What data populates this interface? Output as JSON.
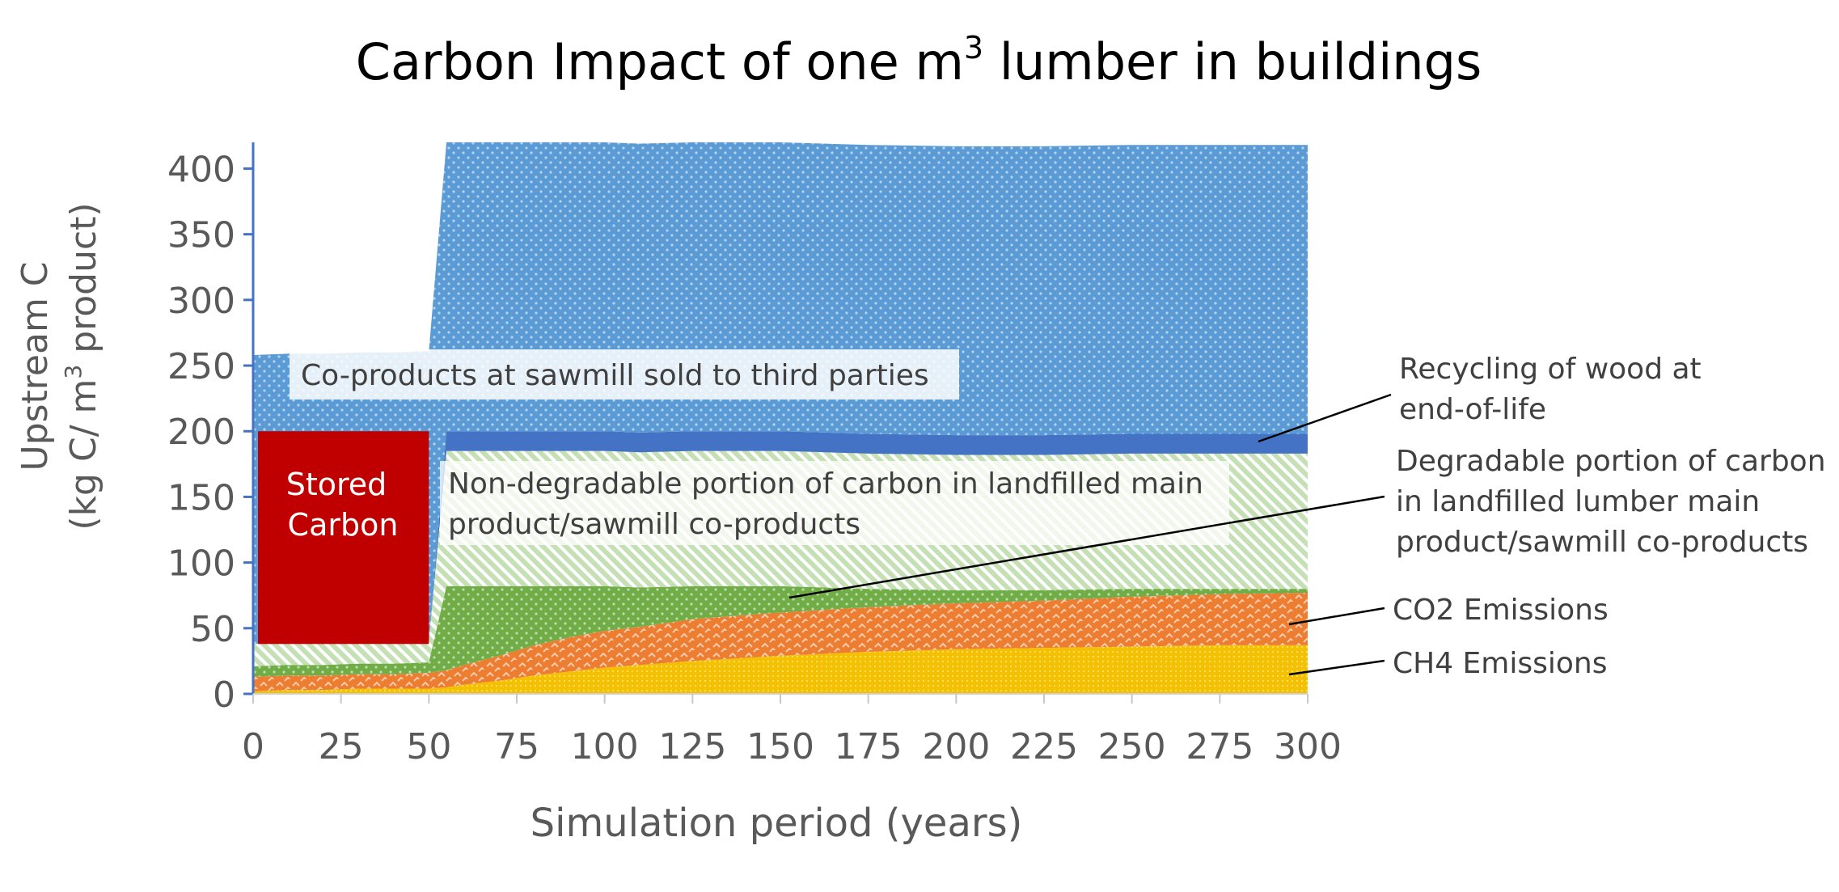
{
  "chart_data": {
    "type": "area",
    "title_main": "Carbon Impact of one m",
    "title_sup": "3",
    "title_rest": " lumber in buildings",
    "xlabel": "Simulation period (years)",
    "ylabel_line1": "Upstream C",
    "ylabel_line2_a": "(kg C/ m",
    "ylabel_line2_sup": "3",
    "ylabel_line2_b": " product)",
    "xlim": [
      0,
      300
    ],
    "ylim": [
      0,
      420
    ],
    "x_ticks": [
      "0",
      "25",
      "50",
      "75",
      "100",
      "125",
      "150",
      "175",
      "200",
      "225",
      "250",
      "275",
      "300"
    ],
    "y_ticks": [
      "0",
      "50",
      "100",
      "150",
      "200",
      "250",
      "300",
      "350",
      "400"
    ],
    "x": [
      0,
      10,
      20,
      30,
      40,
      50,
      55,
      60,
      70,
      80,
      90,
      100,
      110,
      125,
      150,
      175,
      200,
      225,
      250,
      275,
      300
    ],
    "series": [
      {
        "key": "ch4",
        "color": "#f5c000",
        "values": [
          2,
          3,
          3,
          4,
          4,
          4,
          5,
          7,
          10,
          14,
          17,
          20,
          22,
          25,
          29,
          32,
          34,
          35,
          36,
          37,
          37
        ]
      },
      {
        "key": "co2",
        "color": "#ed7d31",
        "values": [
          11,
          11,
          11,
          11,
          11,
          12,
          13,
          15,
          19,
          23,
          26,
          28,
          29,
          32,
          33,
          34,
          35,
          36,
          38,
          39,
          40
        ]
      },
      {
        "key": "degradable",
        "color": "#70ad47",
        "values": [
          8,
          8,
          8,
          8,
          8,
          8,
          64,
          60,
          53,
          45,
          39,
          34,
          30,
          25,
          20,
          14,
          10,
          8,
          6,
          4,
          3
        ]
      },
      {
        "key": "nondegradable",
        "color": "#a9d18e",
        "values": [
          17,
          17,
          17,
          17,
          17,
          17,
          103,
          103,
          103,
          103,
          103,
          103,
          103,
          103,
          103,
          103,
          103,
          103,
          103,
          103,
          103
        ]
      },
      {
        "key": "recycling",
        "color": "#4472c4",
        "values": [
          0,
          0,
          0,
          0,
          0,
          0,
          15,
          15,
          15,
          15,
          15,
          15,
          15,
          15,
          15,
          15,
          15,
          15,
          15,
          15,
          15
        ]
      },
      {
        "key": "coproducts",
        "color": "#5b9bd5",
        "values": [
          220,
          220,
          220,
          220,
          220,
          220,
          220,
          220,
          220,
          220,
          220,
          220,
          220,
          220,
          220,
          220,
          220,
          220,
          220,
          220,
          220
        ]
      }
    ],
    "stored_carbon": {
      "x0": 0,
      "x1": 50,
      "y0": 38,
      "y1": 200,
      "color": "#c00000",
      "label_line1": "Stored",
      "label_line2": "Carbon"
    },
    "labels": {
      "coproducts": "Co-products at sawmill sold to third parties",
      "nondegradable_line1": "Non-degradable portion of carbon in landfilled main",
      "nondegradable_line2": "product/sawmill co-products",
      "recycling_line1": "Recycling of wood at",
      "recycling_line2": "end-of-life",
      "degradable_line1": "Degradable portion of carbon",
      "degradable_line2": "in landfilled lumber main",
      "degradable_line3": "product/sawmill co-products",
      "co2": "CO2 Emissions",
      "ch4": "CH4 Emissions"
    },
    "grid": false,
    "legend": "none"
  }
}
